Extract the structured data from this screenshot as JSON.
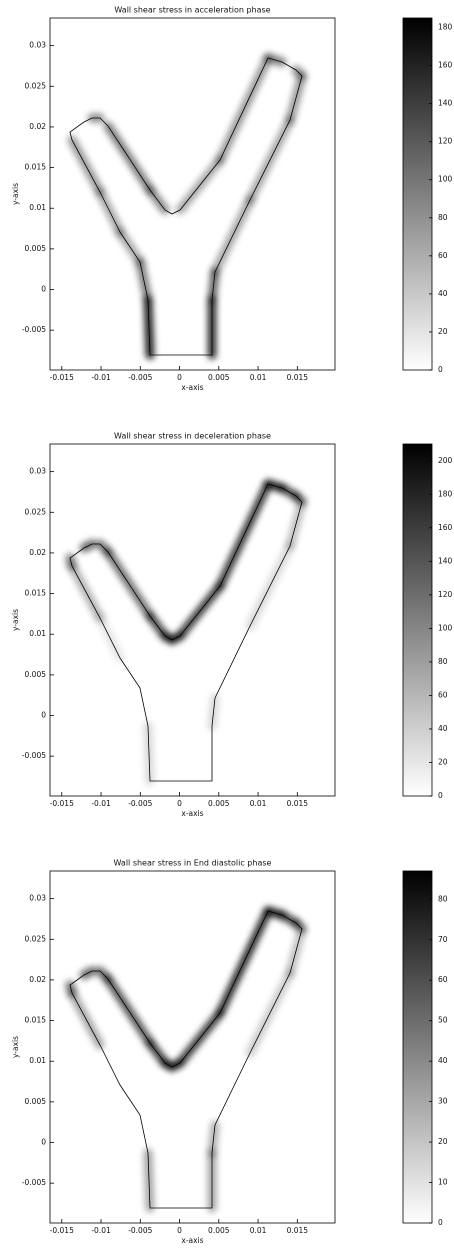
{
  "chart_data": [
    {
      "type": "field",
      "title": "Wall shear stress in acceleration phase",
      "xlabel": "x-axis",
      "ylabel": "y-axis",
      "xlim": [
        -0.0165,
        0.0198
      ],
      "ylim": [
        -0.0099,
        0.0334
      ],
      "xticks": [
        -0.015,
        -0.01,
        -0.005,
        0,
        0.005,
        0.01,
        0.015
      ],
      "yticks": [
        -0.005,
        0,
        0.005,
        0.01,
        0.015,
        0.02,
        0.025,
        0.03
      ],
      "clim": [
        0,
        185
      ],
      "cticks": [
        0,
        20,
        40,
        60,
        80,
        100,
        120,
        140,
        160,
        180
      ]
    },
    {
      "type": "field",
      "title": "Wall shear stress in deceleration phase",
      "xlabel": "x-axis",
      "ylabel": "y-axis",
      "xlim": [
        -0.0165,
        0.0198
      ],
      "ylim": [
        -0.0099,
        0.0334
      ],
      "xticks": [
        -0.015,
        -0.01,
        -0.005,
        0,
        0.005,
        0.01,
        0.015
      ],
      "yticks": [
        -0.005,
        0,
        0.005,
        0.01,
        0.015,
        0.02,
        0.025,
        0.03
      ],
      "clim": [
        0,
        210
      ],
      "cticks": [
        0,
        20,
        40,
        60,
        80,
        100,
        120,
        140,
        160,
        180,
        200
      ]
    },
    {
      "type": "field",
      "title": "Wall shear stress in End diastolic phase",
      "xlabel": "x-axis",
      "ylabel": "y-axis",
      "xlim": [
        -0.0165,
        0.0198
      ],
      "ylim": [
        -0.0099,
        0.0334
      ],
      "xticks": [
        -0.015,
        -0.01,
        -0.005,
        0,
        0.005,
        0.01,
        0.015
      ],
      "yticks": [
        -0.005,
        0,
        0.005,
        0.01,
        0.015,
        0.02,
        0.025,
        0.03
      ],
      "clim": [
        0,
        87
      ],
      "cticks": [
        0,
        10,
        20,
        30,
        40,
        50,
        60,
        70,
        80
      ]
    }
  ]
}
